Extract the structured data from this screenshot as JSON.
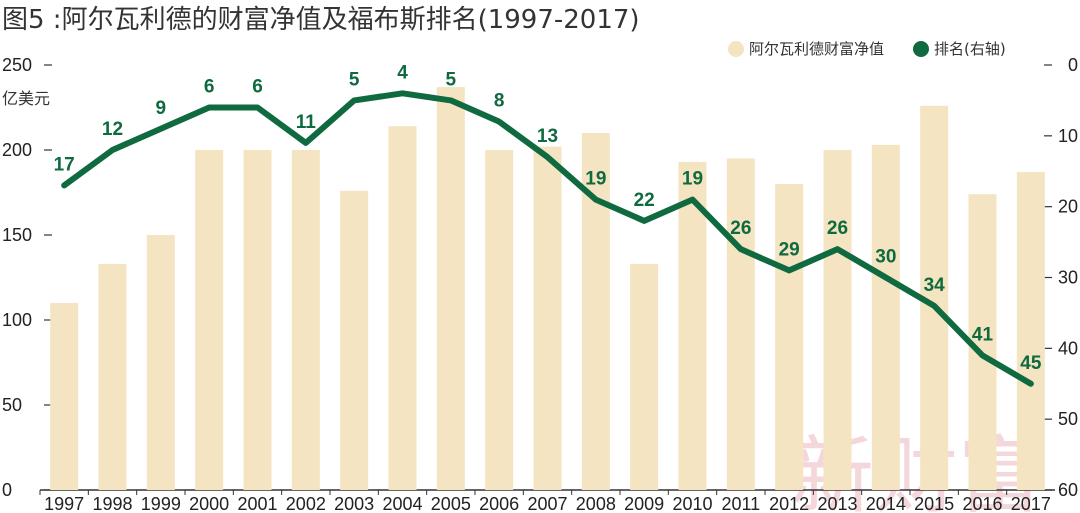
{
  "title": "图5 :阿尔瓦利德的财富净值及福布斯排名(1997-2017)",
  "watermark": "新财富",
  "colors": {
    "bar": "#f4e4c1",
    "line": "#0f6a3f",
    "axis": "#333333",
    "text": "#222222",
    "watermark": "#c8283a"
  },
  "legend": [
    {
      "label": "阿尔瓦利德财富净值",
      "kind": "circle",
      "color": "#f4e4c1"
    },
    {
      "label": "排名(右轴)",
      "kind": "circle",
      "color": "#0f6a3f"
    }
  ],
  "chart_data": {
    "type": "bar+line",
    "categories": [
      "1997",
      "1998",
      "1999",
      "2000",
      "2001",
      "2002",
      "2003",
      "2004",
      "2005",
      "2006",
      "2007",
      "2008",
      "2009",
      "2010",
      "2011",
      "2012",
      "2013",
      "2014",
      "2015",
      "2016",
      "2017"
    ],
    "series": [
      {
        "name": "阿尔瓦利德财富净值",
        "type": "bar",
        "axis": "left",
        "values": [
          110,
          133,
          150,
          200,
          200,
          200,
          176,
          214,
          237,
          200,
          202,
          210,
          133,
          193,
          195,
          180,
          200,
          203,
          226,
          174,
          187
        ]
      },
      {
        "name": "排名(右轴)",
        "type": "line",
        "axis": "right",
        "values": [
          17,
          12,
          9,
          6,
          6,
          11,
          5,
          4,
          5,
          8,
          13,
          19,
          22,
          19,
          26,
          29,
          26,
          30,
          34,
          41,
          45
        ]
      }
    ],
    "y_left": {
      "unit": "亿美元",
      "ylim": [
        0,
        250
      ],
      "ticks": [
        0,
        50,
        100,
        150,
        200,
        250
      ]
    },
    "y_right": {
      "ylim": [
        0,
        60
      ],
      "inverted": true,
      "ticks": [
        0,
        10,
        20,
        30,
        40,
        50,
        60
      ]
    },
    "grid": false,
    "legend_position": "top-right"
  }
}
